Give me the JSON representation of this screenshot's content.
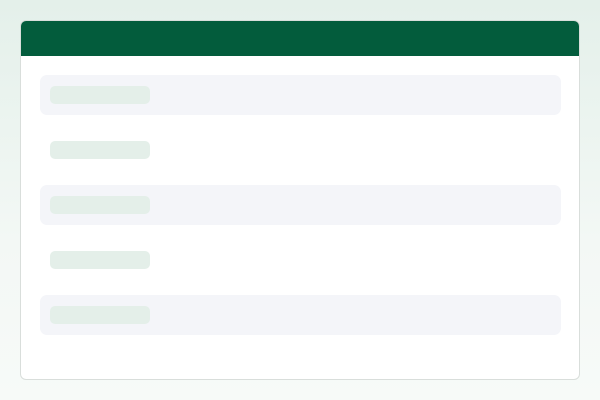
{
  "colors": {
    "header": "#035c3c",
    "row_striped": "#f4f5f9",
    "placeholder": "#e4efe9"
  },
  "rows": [
    {
      "striped": true
    },
    {
      "striped": false
    },
    {
      "striped": true
    },
    {
      "striped": false
    },
    {
      "striped": true
    }
  ]
}
